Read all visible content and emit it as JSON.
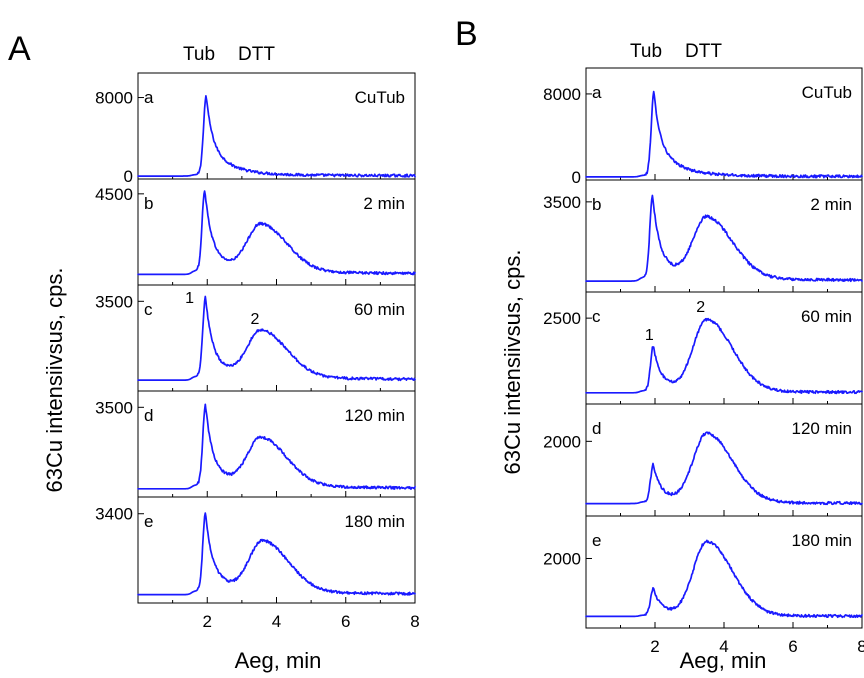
{
  "figures": [
    {
      "letter": "A",
      "header": [
        "Tub",
        "DTT"
      ],
      "xlabel": "Aeg, min",
      "ylabel": "63Cu intensiivsus, cps."
    },
    {
      "letter": "B",
      "header": [
        "Tub",
        "DTT"
      ],
      "xlabel": "Aeg, min",
      "ylabel": "63Cu intensiivsus, cps."
    }
  ],
  "colors": {
    "trace": "#1a1aff",
    "axes": "#000000"
  },
  "chart_data": [
    {
      "type": "line",
      "panel": "A",
      "xlabel": "Aeg, min",
      "ylabel": "63Cu intensiivsus, cps.",
      "xlim": [
        0,
        8
      ],
      "x_ticks": [
        2,
        4,
        6,
        8
      ],
      "x_minor_ticks": [
        1,
        3,
        5,
        7
      ],
      "subplots": [
        {
          "letter": "a",
          "label": "CuTub",
          "y_ticks": [
            "8000",
            "0"
          ],
          "ylim": [
            -300,
            10500
          ],
          "baseline": 0,
          "peak1": {
            "x": 1.97,
            "y": 8000
          },
          "peak2": null
        },
        {
          "letter": "b",
          "label": "2 min",
          "y_ticks": [
            "4500"
          ],
          "ylim": [
            200,
            5200
          ],
          "baseline": 700,
          "peak1": {
            "x": 1.93,
            "y": 4500
          },
          "peak2": {
            "x": 3.55,
            "y": 2900
          }
        },
        {
          "letter": "c",
          "label": "60 min",
          "y_ticks": [
            "3500"
          ],
          "ylim": [
            200,
            4100
          ],
          "baseline": 600,
          "peak1": {
            "x": 1.95,
            "y": 3500
          },
          "peak2": {
            "x": 3.55,
            "y": 2300
          },
          "peak_labels": [
            "1",
            "2"
          ]
        },
        {
          "letter": "d",
          "label": "120 min",
          "y_ticks": [
            "3500"
          ],
          "ylim": [
            200,
            4100
          ],
          "baseline": 500,
          "peak1": {
            "x": 1.95,
            "y": 3450
          },
          "peak2": {
            "x": 3.55,
            "y": 2250
          }
        },
        {
          "letter": "e",
          "label": "180 min",
          "y_ticks": [
            "3400"
          ],
          "ylim": [
            200,
            4000
          ],
          "baseline": 500,
          "peak1": {
            "x": 1.95,
            "y": 3300
          },
          "peak2": {
            "x": 3.6,
            "y": 2300
          }
        }
      ]
    },
    {
      "type": "line",
      "panel": "B",
      "xlabel": "Aeg, min",
      "ylabel": "63Cu intensiivsus, cps.",
      "xlim": [
        0,
        8
      ],
      "x_ticks": [
        2,
        4,
        6,
        8
      ],
      "x_minor_ticks": [
        1,
        3,
        5,
        7
      ],
      "subplots": [
        {
          "letter": "a",
          "label": "CuTub",
          "y_ticks": [
            "8000",
            "0"
          ],
          "ylim": [
            -300,
            10500
          ],
          "baseline": 0,
          "peak1": {
            "x": 1.97,
            "y": 8000
          },
          "peak2": null
        },
        {
          "letter": "b",
          "label": "2 min",
          "y_ticks": [
            "3500"
          ],
          "ylim": [
            200,
            4300
          ],
          "baseline": 600,
          "peak1": {
            "x": 1.93,
            "y": 3600
          },
          "peak2": {
            "x": 3.5,
            "y": 2800
          }
        },
        {
          "letter": "c",
          "label": "60 min",
          "y_ticks": [
            "2500"
          ],
          "ylim": [
            200,
            3200
          ],
          "baseline": 500,
          "peak1": {
            "x": 1.95,
            "y": 1700
          },
          "peak2": {
            "x": 3.5,
            "y": 2400
          },
          "peak_labels": [
            "1",
            "2"
          ]
        },
        {
          "letter": "d",
          "label": "120 min",
          "y_ticks": [
            "2000"
          ],
          "ylim": [
            200,
            2900
          ],
          "baseline": 500,
          "peak1": {
            "x": 1.95,
            "y": 1400
          },
          "peak2": {
            "x": 3.5,
            "y": 2150
          }
        },
        {
          "letter": "e",
          "label": "180 min",
          "y_ticks": [
            "2000"
          ],
          "ylim": [
            200,
            3100
          ],
          "baseline": 500,
          "peak1": {
            "x": 1.95,
            "y": 1200
          },
          "peak2": {
            "x": 3.5,
            "y": 2400
          }
        }
      ]
    }
  ]
}
